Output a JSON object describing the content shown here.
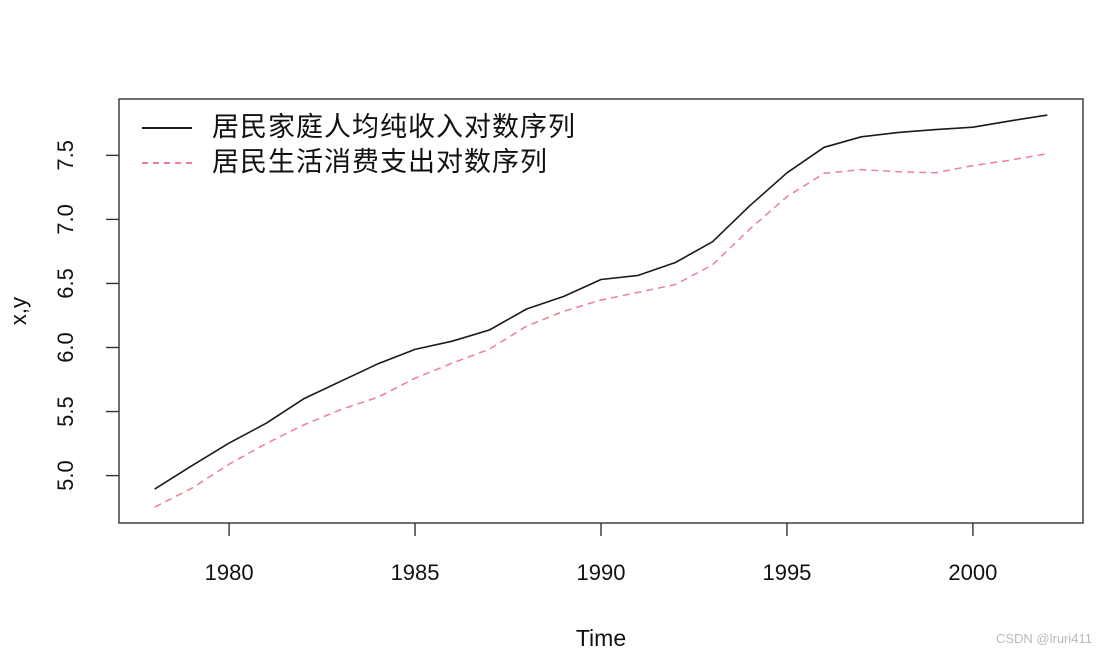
{
  "watermark": {
    "text": "CSDN @lruri411",
    "color": "#b9b9b9"
  },
  "chart_data": {
    "type": "line",
    "title": "",
    "xlabel": "Time",
    "ylabel": "x,y",
    "x": [
      1978,
      1979,
      1980,
      1981,
      1982,
      1983,
      1984,
      1985,
      1986,
      1987,
      1988,
      1989,
      1990,
      1991,
      1992,
      1993,
      1994,
      1995,
      1996,
      1997,
      1998,
      1999,
      2000,
      2001,
      2002
    ],
    "series": [
      {
        "name": "居民家庭人均纯收入对数序列",
        "color": "#1a1a1a",
        "linestyle": "solid",
        "values": [
          4.895,
          5.077,
          5.254,
          5.409,
          5.599,
          5.736,
          5.873,
          5.985,
          6.049,
          6.137,
          6.301,
          6.399,
          6.531,
          6.563,
          6.664,
          6.826,
          7.107,
          7.364,
          7.563,
          7.645,
          7.679,
          7.701,
          7.72,
          7.769,
          7.814
        ]
      },
      {
        "name": "居民生活消费支出对数序列",
        "color": "#ec8095",
        "linestyle": "dashed",
        "values": [
          4.754,
          4.902,
          5.089,
          5.251,
          5.395,
          5.515,
          5.612,
          5.76,
          5.878,
          5.987,
          6.167,
          6.283,
          6.371,
          6.43,
          6.492,
          6.646,
          6.924,
          7.178,
          7.36,
          7.389,
          7.372,
          7.364,
          7.421,
          7.462,
          7.514
        ]
      }
    ],
    "xlim": [
      1977.04,
      2002.96
    ],
    "ylim": [
      4.63,
      7.94
    ],
    "xticks": [
      "1980",
      "1985",
      "1990",
      "1995",
      "2000"
    ],
    "yticks": [
      "5.0",
      "5.5",
      "6.0",
      "6.5",
      "7.0",
      "7.5"
    ],
    "legend_position": "topleft",
    "grid": false,
    "axis_color": "#333333",
    "tick_label_color": "#111111"
  }
}
